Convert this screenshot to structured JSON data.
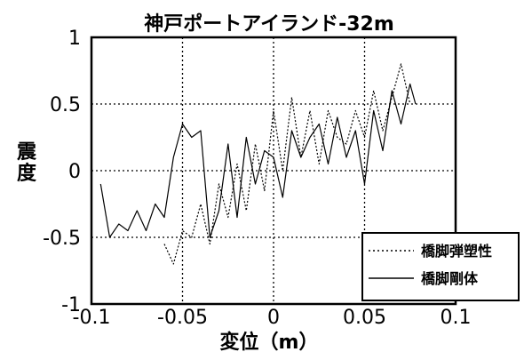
{
  "chart_data": {
    "type": "line",
    "title": "神戸ポートアイランド-32m",
    "xlabel": "変位（m）",
    "ylabel": "震度",
    "xlim": [
      -0.1,
      0.1
    ],
    "ylim": [
      -1,
      1
    ],
    "xticks": [
      -0.1,
      -0.05,
      0,
      0.05,
      0.1
    ],
    "xtick_labels": [
      "-0.1",
      "-0.05",
      "0",
      "0.05",
      "0.1"
    ],
    "yticks": [
      -1,
      -0.5,
      0,
      0.5,
      1
    ],
    "ytick_labels": [
      "-1",
      "-0.5",
      "0",
      "0.5",
      "1"
    ],
    "grid": true,
    "legend_position": "bottom-right",
    "series": [
      {
        "name": "橋脚弾塑性",
        "style": "dotted",
        "x": [
          -0.06,
          -0.055,
          -0.05,
          -0.045,
          -0.04,
          -0.035,
          -0.03,
          -0.025,
          -0.02,
          -0.015,
          -0.01,
          -0.005,
          0.0,
          0.005,
          0.01,
          0.015,
          0.02,
          0.025,
          0.03,
          0.035,
          0.04,
          0.045,
          0.05,
          0.055,
          0.06,
          0.065,
          0.07,
          0.075
        ],
        "y": [
          -0.55,
          -0.7,
          -0.45,
          -0.5,
          -0.25,
          -0.55,
          -0.1,
          -0.35,
          0.05,
          -0.3,
          0.2,
          -0.15,
          0.45,
          0.0,
          0.55,
          0.1,
          0.45,
          0.05,
          0.45,
          0.25,
          0.2,
          0.45,
          0.25,
          0.6,
          0.3,
          0.55,
          0.8,
          0.5
        ]
      },
      {
        "name": "橋脚剛体",
        "style": "solid",
        "x": [
          -0.095,
          -0.09,
          -0.085,
          -0.08,
          -0.075,
          -0.07,
          -0.065,
          -0.06,
          -0.055,
          -0.05,
          -0.045,
          -0.04,
          -0.035,
          -0.03,
          -0.025,
          -0.02,
          -0.015,
          -0.01,
          -0.005,
          0.0,
          0.005,
          0.01,
          0.015,
          0.02,
          0.025,
          0.03,
          0.035,
          0.04,
          0.045,
          0.05,
          0.055,
          0.06,
          0.065,
          0.07,
          0.075,
          0.078
        ],
        "y": [
          -0.1,
          -0.5,
          -0.4,
          -0.45,
          -0.3,
          -0.45,
          -0.25,
          -0.35,
          0.1,
          0.35,
          0.25,
          0.3,
          -0.5,
          -0.3,
          0.2,
          -0.35,
          0.25,
          -0.1,
          0.15,
          0.1,
          -0.2,
          0.3,
          0.1,
          0.25,
          0.35,
          0.05,
          0.4,
          0.1,
          0.3,
          -0.1,
          0.45,
          0.15,
          0.6,
          0.35,
          0.65,
          0.5
        ]
      }
    ]
  }
}
